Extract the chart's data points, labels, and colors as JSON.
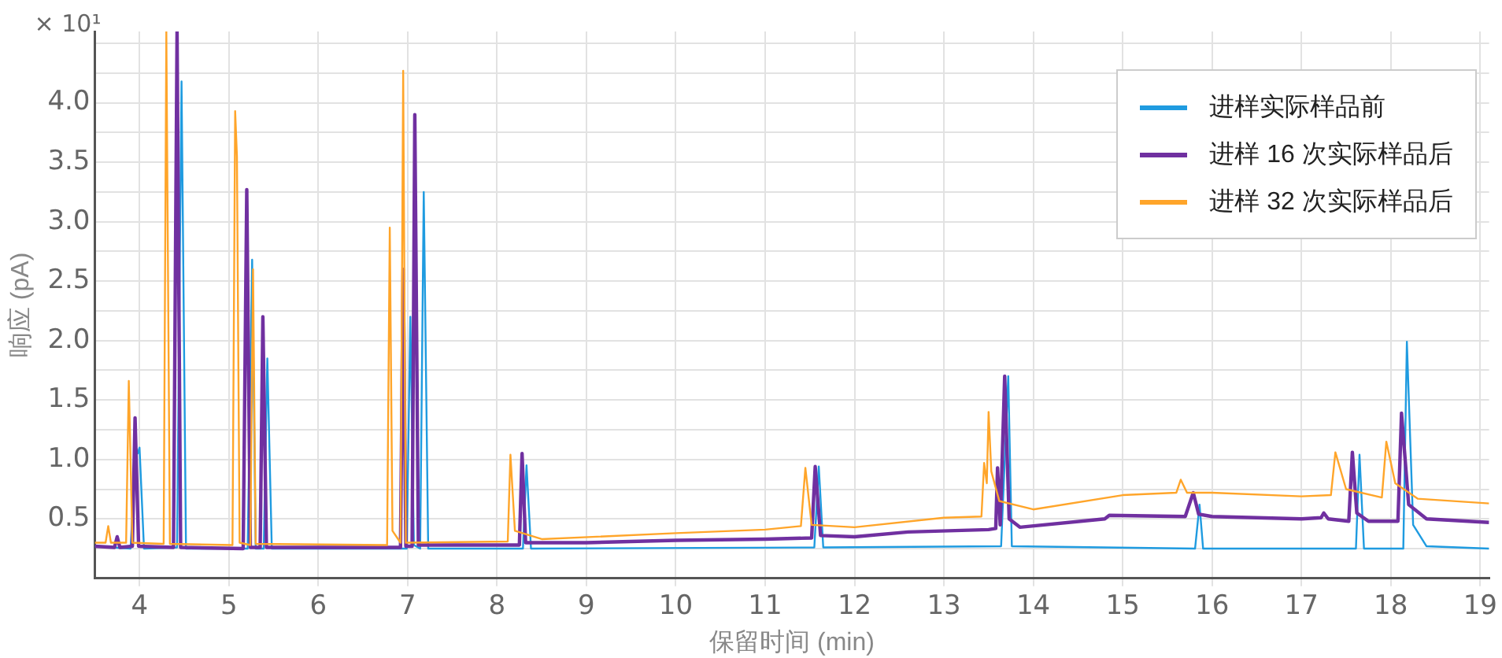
{
  "chart_data": {
    "type": "line",
    "xlabel": "保留时间 (min)",
    "ylabel": "响应 (pA)",
    "annotations": [
      "× 10¹"
    ],
    "xlim": [
      3.5,
      19.1
    ],
    "xticks": [
      4,
      5,
      6,
      7,
      8,
      9,
      10,
      11,
      12,
      13,
      14,
      15,
      16,
      17,
      18,
      19
    ],
    "ylim": [
      0,
      4.6
    ],
    "yticks": [
      {
        "value": 0.25,
        "label": null
      },
      0.5,
      {
        "value": 0.75,
        "label": null
      },
      "1.0",
      {
        "value": 1.25,
        "label": null
      },
      1.5,
      {
        "value": 1.75,
        "label": null
      },
      "2.0",
      {
        "value": 2.25,
        "label": null
      },
      2.5,
      {
        "value": 2.75,
        "label": null
      },
      "3.0",
      {
        "value": 3.25,
        "label": null
      },
      3.5,
      {
        "value": 3.75,
        "label": null
      },
      "4.0",
      {
        "value": 4.25,
        "label": null
      },
      {
        "value": 4.5,
        "label": null
      }
    ],
    "grid": true,
    "legend": "top right",
    "marker": "none",
    "line_style": "solid",
    "series": [
      {
        "name": "进样实际样品前",
        "color": "#1f9be0",
        "x": [
          3.5,
          3.9,
          3.96,
          3.98,
          4.0,
          4.05,
          4.42,
          4.47,
          4.52,
          5.21,
          5.26,
          5.3,
          5.39,
          5.43,
          5.48,
          6.99,
          7.03,
          7.07,
          7.14,
          7.18,
          7.23,
          8.29,
          8.33,
          8.38,
          11.55,
          11.6,
          11.65,
          13.64,
          13.72,
          13.76,
          15.81,
          15.86,
          15.9,
          17.61,
          17.65,
          17.7,
          18.14,
          18.18,
          18.25,
          18.4,
          19.1
        ],
        "values": [
          0.27,
          0.25,
          1.1,
          1.05,
          1.1,
          0.25,
          0.26,
          4.18,
          0.25,
          0.25,
          2.68,
          0.25,
          0.25,
          1.85,
          0.25,
          0.25,
          2.2,
          0.28,
          0.25,
          3.25,
          0.25,
          0.25,
          0.95,
          0.25,
          0.26,
          0.94,
          0.26,
          0.27,
          1.7,
          0.27,
          0.25,
          0.62,
          0.25,
          0.25,
          1.04,
          0.25,
          0.25,
          1.99,
          0.45,
          0.27,
          0.25
        ]
      },
      {
        "name": "进样 16 次实际样品后",
        "color": "#7030a0",
        "x": [
          3.5,
          3.72,
          3.75,
          3.78,
          3.92,
          3.95,
          3.99,
          4.38,
          4.42,
          4.46,
          5.16,
          5.2,
          5.24,
          5.35,
          5.38,
          5.42,
          6.92,
          6.95,
          6.98,
          7.05,
          7.08,
          7.12,
          8.25,
          8.28,
          8.32,
          9,
          10,
          11,
          11.52,
          11.56,
          11.62,
          12,
          12.6,
          13.5,
          13.58,
          13.6,
          13.63,
          13.68,
          13.73,
          13.85,
          14.8,
          14.85,
          15.7,
          15.79,
          15.85,
          16,
          17,
          17.22,
          17.25,
          17.3,
          17.53,
          17.57,
          17.62,
          17.75,
          18.08,
          18.12,
          18.2,
          18.4,
          19.1
        ],
        "values": [
          0.27,
          0.26,
          0.35,
          0.26,
          0.27,
          1.35,
          0.27,
          0.26,
          4.6,
          0.26,
          0.25,
          3.27,
          0.26,
          0.26,
          2.2,
          0.26,
          0.26,
          2.6,
          0.27,
          0.27,
          3.9,
          0.28,
          0.28,
          1.05,
          0.3,
          0.3,
          0.32,
          0.33,
          0.34,
          0.94,
          0.36,
          0.35,
          0.39,
          0.41,
          0.42,
          0.93,
          0.45,
          1.7,
          0.5,
          0.43,
          0.5,
          0.53,
          0.52,
          0.72,
          0.54,
          0.52,
          0.5,
          0.51,
          0.55,
          0.5,
          0.48,
          1.06,
          0.55,
          0.48,
          0.48,
          1.39,
          0.62,
          0.5,
          0.47
        ]
      },
      {
        "name": "进样 32 次实际样品后",
        "color": "#ffa52a",
        "x": [
          3.5,
          3.62,
          3.65,
          3.68,
          3.85,
          3.88,
          3.92,
          4.27,
          4.3,
          4.34,
          5.04,
          5.07,
          5.09,
          5.12,
          5.24,
          5.27,
          5.3,
          6.77,
          6.8,
          6.83,
          6.92,
          6.95,
          6.98,
          8.12,
          8.15,
          8.2,
          8.5,
          10,
          11,
          11.4,
          11.45,
          11.52,
          12,
          13,
          13.42,
          13.45,
          13.48,
          13.5,
          13.53,
          13.62,
          14,
          15,
          15.6,
          15.65,
          15.72,
          16,
          17,
          17.33,
          17.38,
          17.5,
          17.9,
          17.95,
          18.05,
          18.3,
          19.1
        ],
        "values": [
          0.3,
          0.3,
          0.44,
          0.3,
          0.3,
          1.66,
          0.3,
          0.29,
          4.6,
          0.29,
          0.28,
          3.93,
          3.55,
          0.3,
          0.28,
          2.6,
          0.29,
          0.28,
          2.95,
          0.4,
          0.3,
          4.27,
          0.3,
          0.31,
          1.04,
          0.4,
          0.33,
          0.38,
          0.41,
          0.44,
          0.93,
          0.45,
          0.43,
          0.51,
          0.52,
          0.97,
          0.8,
          1.4,
          0.9,
          0.65,
          0.58,
          0.7,
          0.72,
          0.83,
          0.72,
          0.72,
          0.69,
          0.7,
          1.06,
          0.75,
          0.68,
          1.15,
          0.8,
          0.67,
          0.63
        ]
      }
    ]
  }
}
